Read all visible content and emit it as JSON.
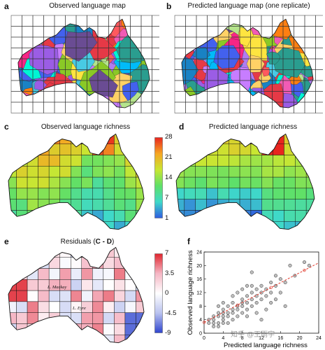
{
  "panels": {
    "a": {
      "letter": "a",
      "title": "Observed language map"
    },
    "b": {
      "letter": "b",
      "title": "Predicted language map (one replicate)"
    },
    "c": {
      "letter": "c",
      "title": "Observed language richness"
    },
    "d": {
      "letter": "d",
      "title": "Predicted language richness"
    },
    "e": {
      "letter": "e",
      "title_prefix": "Residuals (",
      "title_bold": "C - D",
      "title_suffix": ")",
      "lakes": [
        "L. Mackay",
        "L. Eyre"
      ]
    },
    "f": {
      "letter": "f"
    }
  },
  "colorbars": {
    "richness": {
      "ticks": [
        "28",
        "21",
        "14",
        "7",
        "1"
      ],
      "colors": [
        "#e8251f",
        "#f6a623",
        "#c9e632",
        "#5fe068",
        "#3fd9c9",
        "#2f5ce0"
      ]
    },
    "residuals": {
      "ticks": [
        "7",
        "3.5",
        "0",
        "-4.5",
        "-9"
      ],
      "colors": [
        "#e0252e",
        "#f5b6c4",
        "#ffffff",
        "#b9c2ef",
        "#2f45cf"
      ]
    }
  },
  "watermark": "知乎 @王雨宇",
  "chart_data": {
    "type": "scatter",
    "xlabel": "Predicted language richness",
    "ylabel": "Observed language richness",
    "xlim": [
      0,
      24
    ],
    "ylim": [
      0,
      24
    ],
    "xticks": [
      "0",
      "4",
      "8",
      "12",
      "16",
      "20",
      "24"
    ],
    "yticks": [
      "0",
      "4",
      "8",
      "12",
      "16",
      "20",
      "24"
    ],
    "trendline": {
      "x": [
        0,
        24
      ],
      "y": [
        3.2,
        20.8
      ],
      "color": "#e23b2e",
      "style": "dashed"
    },
    "points": [
      [
        1,
        3
      ],
      [
        1,
        4
      ],
      [
        2,
        2
      ],
      [
        2,
        3
      ],
      [
        2,
        4
      ],
      [
        2,
        5
      ],
      [
        3,
        2
      ],
      [
        3,
        3
      ],
      [
        3,
        5
      ],
      [
        3,
        6
      ],
      [
        4,
        3
      ],
      [
        4,
        4
      ],
      [
        4,
        5
      ],
      [
        4,
        6
      ],
      [
        4,
        7
      ],
      [
        4,
        9
      ],
      [
        5,
        3
      ],
      [
        5,
        5
      ],
      [
        5,
        6
      ],
      [
        5,
        8
      ],
      [
        6,
        4
      ],
      [
        6,
        6
      ],
      [
        6,
        7
      ],
      [
        6,
        9
      ],
      [
        7,
        5
      ],
      [
        7,
        7
      ],
      [
        7,
        8
      ],
      [
        7,
        12
      ],
      [
        8,
        6
      ],
      [
        8,
        8
      ],
      [
        8,
        9
      ],
      [
        8,
        10
      ],
      [
        8,
        13
      ],
      [
        9,
        7
      ],
      [
        9,
        9
      ],
      [
        9,
        11
      ],
      [
        9,
        14
      ],
      [
        10,
        8
      ],
      [
        10,
        10
      ],
      [
        10,
        12
      ],
      [
        10,
        14
      ],
      [
        11,
        9
      ],
      [
        11,
        11
      ],
      [
        11,
        13
      ],
      [
        12,
        10
      ],
      [
        12,
        12
      ],
      [
        12,
        14
      ],
      [
        13,
        11
      ],
      [
        13,
        13
      ],
      [
        14,
        9
      ],
      [
        14,
        12
      ],
      [
        14,
        15
      ],
      [
        15,
        14
      ],
      [
        15,
        17
      ],
      [
        16,
        12
      ],
      [
        16,
        16
      ],
      [
        17,
        15
      ],
      [
        18,
        20
      ],
      [
        19,
        17
      ],
      [
        21,
        21
      ],
      [
        22,
        20
      ],
      [
        3,
        8
      ],
      [
        6,
        11
      ],
      [
        9,
        5
      ],
      [
        11,
        6
      ],
      [
        13,
        7
      ],
      [
        15,
        10
      ],
      [
        17,
        8
      ],
      [
        12,
        4
      ],
      [
        10,
        18
      ]
    ]
  }
}
